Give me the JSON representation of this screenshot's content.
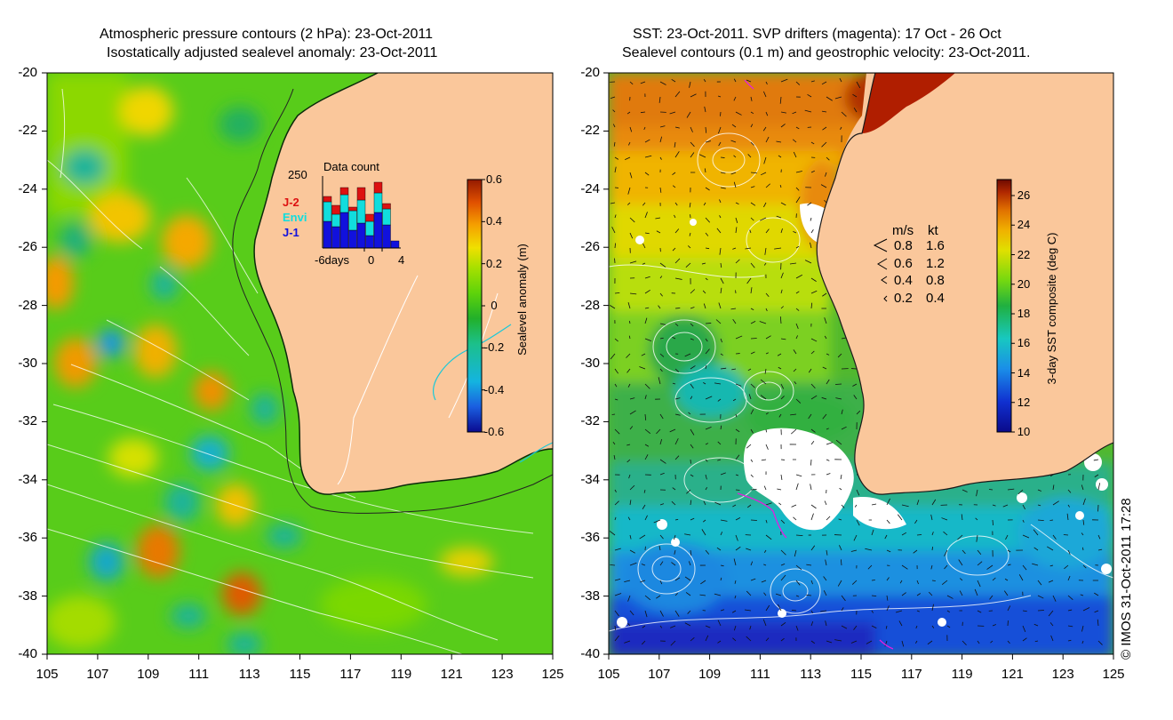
{
  "left_panel": {
    "title_line1": "Atmospheric pressure contours (2 hPa): 23-Oct-2011",
    "title_line2": "Isostatically adjusted sealevel anomaly: 23-Oct-2011",
    "colorbar": {
      "label": "Sealevel anomaly (m)",
      "ticks": [
        "0.6",
        "0.4",
        "0.2",
        "0",
        "-0.2",
        "-0.4",
        "-0.6"
      ]
    },
    "inset": {
      "title": "Data count",
      "y_tick": "250",
      "x_labels": [
        "-6days",
        "0",
        "4"
      ],
      "legend": [
        {
          "label": "J-2",
          "color": "#dd1111"
        },
        {
          "label": "Envi",
          "color": "#11dddd"
        },
        {
          "label": "J-1",
          "color": "#1111dd"
        }
      ]
    }
  },
  "right_panel": {
    "title_line1": "SST: 23-Oct-2011. SVP drifters (magenta): 17 Oct - 26 Oct",
    "title_line2": "Sealevel contours (0.1 m) and geostrophic velocity: 23-Oct-2011.",
    "colorbar": {
      "label": "3-day SST composite (deg C)",
      "ticks": [
        "26",
        "24",
        "22",
        "20",
        "18",
        "16",
        "14",
        "12",
        "10"
      ]
    },
    "velocity_legend": {
      "header_ms": "m/s",
      "header_kt": "kt",
      "rows": [
        {
          "ms": "0.8",
          "kt": "1.6"
        },
        {
          "ms": "0.6",
          "kt": "1.2"
        },
        {
          "ms": "0.4",
          "kt": "0.8"
        },
        {
          "ms": "0.2",
          "kt": "0.4"
        }
      ]
    }
  },
  "axes": {
    "lat_labels": [
      "-20",
      "-22",
      "-24",
      "-26",
      "-28",
      "-30",
      "-32",
      "-34",
      "-36",
      "-38",
      "-40"
    ],
    "lon_labels": [
      "105",
      "107",
      "109",
      "111",
      "113",
      "115",
      "117",
      "119",
      "121",
      "123",
      "125"
    ]
  },
  "copyright": "© IMOS 31-Oct-2011 17:28",
  "colors": {
    "land": "#fac79b",
    "anomaly_ramp": [
      "#0a0a90",
      "#1a5ee0",
      "#14b4e0",
      "#1cc08a",
      "#22b02a",
      "#5ed30a",
      "#a6e000",
      "#f0e000",
      "#f5a000",
      "#e05000",
      "#951a00"
    ],
    "sst_ramp": [
      "#0a0a8a",
      "#1030d0",
      "#1a8ee8",
      "#18c8c0",
      "#20b040",
      "#74d810",
      "#e0e000",
      "#f0b000",
      "#e07000",
      "#b02800",
      "#6e0a00"
    ]
  }
}
